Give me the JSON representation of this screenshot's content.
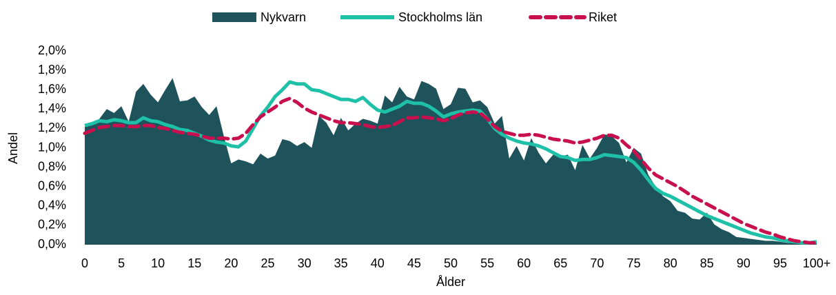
{
  "chart_data": {
    "type": "area",
    "categories": [
      "0",
      null,
      null,
      null,
      null,
      "5",
      null,
      null,
      null,
      null,
      "10",
      null,
      null,
      null,
      null,
      "15",
      null,
      null,
      null,
      null,
      "20",
      null,
      null,
      null,
      null,
      "25",
      null,
      null,
      null,
      null,
      "30",
      null,
      null,
      null,
      null,
      "35",
      null,
      null,
      null,
      null,
      "40",
      null,
      null,
      null,
      null,
      "45",
      null,
      null,
      null,
      null,
      "50",
      null,
      null,
      null,
      null,
      "55",
      null,
      null,
      null,
      null,
      "60",
      null,
      null,
      null,
      null,
      "65",
      null,
      null,
      null,
      null,
      "70",
      null,
      null,
      null,
      null,
      "75",
      null,
      null,
      null,
      null,
      "80",
      null,
      null,
      null,
      null,
      "85",
      null,
      null,
      null,
      null,
      "90",
      null,
      null,
      null,
      null,
      "95",
      null,
      null,
      null,
      null,
      "100+"
    ],
    "series": [
      {
        "name": "Nykvarn",
        "type": "area",
        "color": "#1f535c",
        "values": [
          1.22,
          1.25,
          1.3,
          1.4,
          1.36,
          1.43,
          1.27,
          1.58,
          1.66,
          1.55,
          1.47,
          1.6,
          1.72,
          1.48,
          1.49,
          1.53,
          1.42,
          1.34,
          1.43,
          1.12,
          0.84,
          0.88,
          0.86,
          0.83,
          0.94,
          0.89,
          0.92,
          1.09,
          1.07,
          1.02,
          1.06,
          1.0,
          1.33,
          1.26,
          1.13,
          1.31,
          1.18,
          1.25,
          1.3,
          1.28,
          1.25,
          1.54,
          1.47,
          1.63,
          1.53,
          1.5,
          1.69,
          1.66,
          1.61,
          1.4,
          1.45,
          1.62,
          1.61,
          1.47,
          1.49,
          1.42,
          1.25,
          1.33,
          0.89,
          1.02,
          0.87,
          1.1,
          0.95,
          0.84,
          0.93,
          0.91,
          0.93,
          0.77,
          1.03,
          0.89,
          1.0,
          1.14,
          1.12,
          1.05,
          0.85,
          1.0,
          0.94,
          0.72,
          0.6,
          0.5,
          0.45,
          0.35,
          0.33,
          0.27,
          0.26,
          0.33,
          0.21,
          0.16,
          0.13,
          0.08,
          0.07,
          0.06,
          0.05,
          0.04,
          0.04,
          0.03,
          0.02,
          0.02,
          0.01,
          0.01,
          0.01
        ]
      },
      {
        "name": "Stockholms län",
        "type": "line",
        "dashed": false,
        "color": "#1ec0a8",
        "values": [
          1.23,
          1.25,
          1.28,
          1.27,
          1.29,
          1.28,
          1.26,
          1.26,
          1.31,
          1.28,
          1.27,
          1.24,
          1.22,
          1.19,
          1.18,
          1.15,
          1.12,
          1.08,
          1.06,
          1.05,
          1.02,
          1.01,
          1.07,
          1.2,
          1.33,
          1.42,
          1.53,
          1.6,
          1.68,
          1.66,
          1.66,
          1.6,
          1.59,
          1.56,
          1.53,
          1.5,
          1.5,
          1.48,
          1.52,
          1.45,
          1.39,
          1.37,
          1.4,
          1.43,
          1.48,
          1.46,
          1.46,
          1.43,
          1.38,
          1.32,
          1.35,
          1.37,
          1.38,
          1.39,
          1.38,
          1.3,
          1.2,
          1.14,
          1.1,
          1.07,
          1.05,
          1.04,
          1.02,
          0.99,
          0.95,
          0.91,
          0.9,
          0.87,
          0.88,
          0.88,
          0.9,
          0.93,
          0.92,
          0.91,
          0.9,
          0.85,
          0.77,
          0.67,
          0.58,
          0.53,
          0.5,
          0.46,
          0.42,
          0.38,
          0.34,
          0.3,
          0.27,
          0.24,
          0.21,
          0.18,
          0.15,
          0.12,
          0.1,
          0.08,
          0.07,
          0.05,
          0.04,
          0.03,
          0.02,
          0.02,
          0.03
        ]
      },
      {
        "name": "Riket",
        "type": "line",
        "dashed": true,
        "color": "#c8104e",
        "values": [
          1.15,
          1.18,
          1.21,
          1.22,
          1.23,
          1.23,
          1.22,
          1.22,
          1.23,
          1.23,
          1.21,
          1.2,
          1.18,
          1.16,
          1.15,
          1.14,
          1.12,
          1.1,
          1.1,
          1.1,
          1.09,
          1.1,
          1.15,
          1.24,
          1.32,
          1.37,
          1.42,
          1.48,
          1.51,
          1.47,
          1.41,
          1.37,
          1.34,
          1.31,
          1.28,
          1.26,
          1.26,
          1.25,
          1.24,
          1.22,
          1.21,
          1.22,
          1.23,
          1.27,
          1.31,
          1.31,
          1.32,
          1.31,
          1.3,
          1.28,
          1.3,
          1.34,
          1.36,
          1.37,
          1.36,
          1.3,
          1.22,
          1.17,
          1.15,
          1.13,
          1.13,
          1.14,
          1.13,
          1.11,
          1.09,
          1.08,
          1.07,
          1.05,
          1.06,
          1.08,
          1.1,
          1.13,
          1.13,
          1.1,
          1.03,
          0.97,
          0.88,
          0.79,
          0.72,
          0.68,
          0.64,
          0.6,
          0.55,
          0.5,
          0.46,
          0.42,
          0.38,
          0.34,
          0.3,
          0.26,
          0.22,
          0.19,
          0.16,
          0.13,
          0.11,
          0.08,
          0.06,
          0.04,
          0.03,
          0.02,
          0.02
        ]
      }
    ],
    "x_label": "Ålder",
    "y_label": "Andel",
    "ylim": [
      0,
      2.0
    ],
    "yticks": [
      {
        "value": 0,
        "label": "0,0%"
      },
      {
        "value": 0.2,
        "label": "0,2%"
      },
      {
        "value": 0.4,
        "label": "0,4%"
      },
      {
        "value": 0.6,
        "label": "0,6%"
      },
      {
        "value": 0.8,
        "label": "0,8%"
      },
      {
        "value": 1.0,
        "label": "1,0%"
      },
      {
        "value": 1.2,
        "label": "1,2%"
      },
      {
        "value": 1.4,
        "label": "1,4%"
      },
      {
        "value": 1.6,
        "label": "1,6%"
      },
      {
        "value": 1.8,
        "label": "1,8%"
      },
      {
        "value": 2.0,
        "label": "2,0%"
      }
    ],
    "grid": false,
    "legend": "top"
  }
}
